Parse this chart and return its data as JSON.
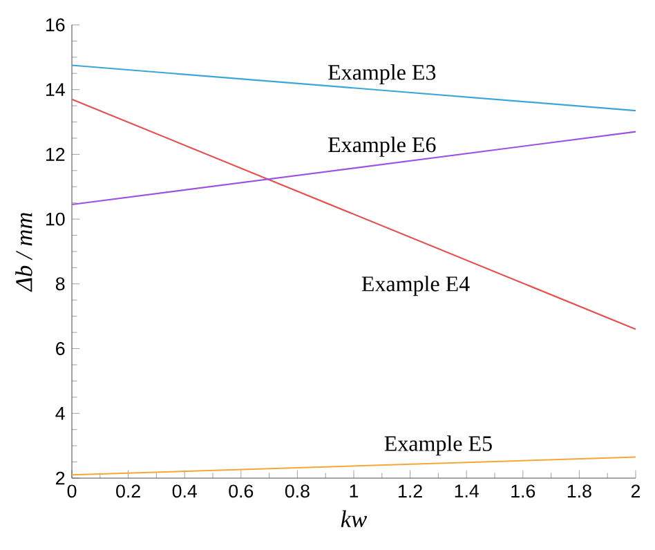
{
  "chart_data": {
    "type": "line",
    "xlabel": "kw",
    "ylabel": "Δb / mm",
    "x": [
      0,
      2
    ],
    "xlim": [
      0,
      2
    ],
    "ylim": [
      2,
      16
    ],
    "xticks": [
      0,
      0.2,
      0.4,
      0.6,
      0.8,
      1,
      1.2,
      1.4,
      1.6,
      1.8,
      2
    ],
    "yticks": [
      2,
      4,
      6,
      8,
      10,
      12,
      14,
      16
    ],
    "grid": false,
    "legend": false,
    "marker": "none",
    "line_style": "solid",
    "series": [
      {
        "name": "Example E3",
        "color": "#3aa6d8",
        "values": [
          14.75,
          13.35
        ]
      },
      {
        "name": "Example E4",
        "color": "#e8504f",
        "values": [
          13.7,
          6.6
        ]
      },
      {
        "name": "Example E5",
        "color": "#f4a732",
        "values": [
          2.1,
          2.65
        ]
      },
      {
        "name": "Example E6",
        "color": "#9a52e6",
        "values": [
          10.45,
          12.7
        ]
      }
    ]
  }
}
